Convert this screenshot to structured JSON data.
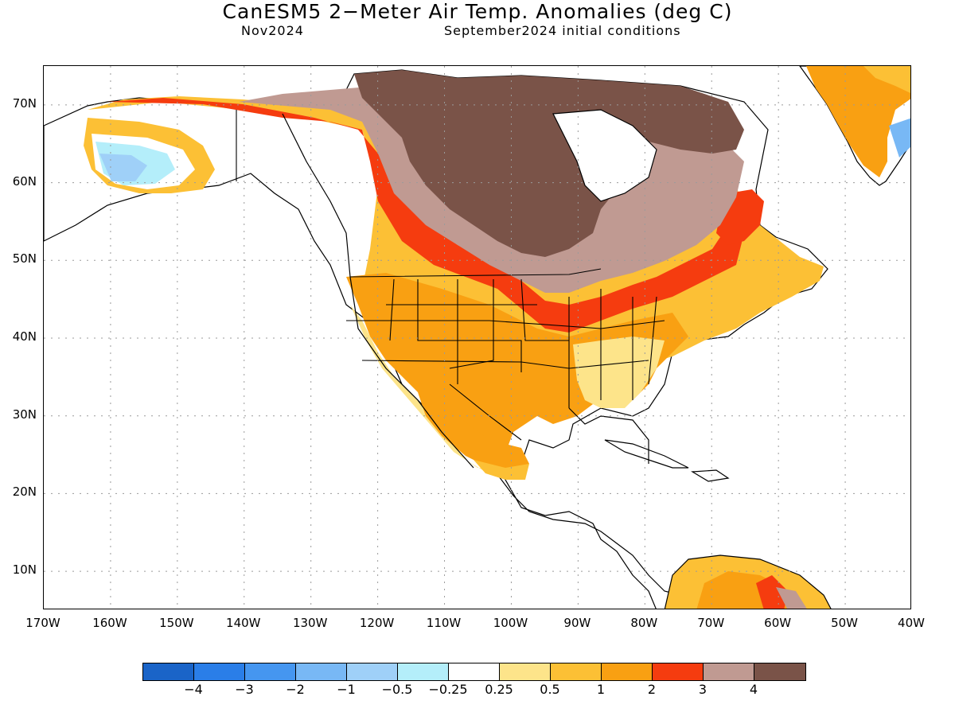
{
  "title": "CanESM5 2−Meter Air Temp. Anomalies (deg C)",
  "subtitle_left": "Nov2024",
  "subtitle_right": "September2024 initial conditions",
  "map": {
    "projection": "lat-lon",
    "extent": {
      "lon": [
        -170,
        -40
      ],
      "lat": [
        5,
        75
      ]
    },
    "lat_ticks": [
      "70N",
      "60N",
      "50N",
      "40N",
      "30N",
      "20N",
      "10N"
    ],
    "lon_ticks": [
      "170W",
      "160W",
      "150W",
      "140W",
      "130W",
      "120W",
      "110W",
      "100W",
      "90W",
      "80W",
      "70W",
      "60W",
      "50W",
      "40W"
    ],
    "grid": "dotted"
  },
  "colorbar": {
    "colors": [
      "#1a64c8",
      "#2a7ee8",
      "#4596f0",
      "#78b8f5",
      "#9fd0f8",
      "#b4eefa",
      "#ffffff",
      "#fde48a",
      "#fcc035",
      "#f9a012",
      "#f53c0f",
      "#c09a92",
      "#7a5348"
    ],
    "labels": [
      "−4",
      "−3",
      "−2",
      "−1",
      "−0.5",
      "−0.25",
      "0.25",
      "0.5",
      "1",
      "2",
      "3",
      "4"
    ]
  },
  "regions": [
    {
      "name": "Alaska interior cool anomaly",
      "class": "−1 to −0.5"
    },
    {
      "name": "Northern Canada / Hudson Bay",
      "class": "> 4"
    },
    {
      "name": "Central Canada band",
      "class": "3 to 4"
    },
    {
      "name": "Western Canada to Great Lakes band",
      "class": "2 to 3"
    },
    {
      "name": "United States",
      "class": "1 to 2"
    },
    {
      "name": "Southeast US",
      "class": "0.25 to 1"
    },
    {
      "name": "Greenland",
      "class": "0.5 to 2"
    },
    {
      "name": "Northern South America",
      "class": "0.5 to 3"
    }
  ]
}
